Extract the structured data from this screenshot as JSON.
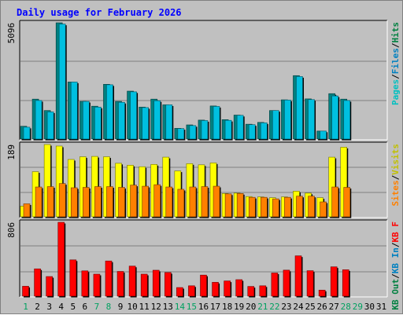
{
  "chart_data": [
    {
      "type": "bar",
      "title": "Daily usage for February 2026",
      "categories": [
        "1",
        "2",
        "3",
        "4",
        "5",
        "6",
        "7",
        "8",
        "9",
        "10",
        "11",
        "12",
        "13",
        "14",
        "15",
        "16",
        "17",
        "18",
        "19",
        "20",
        "21",
        "22",
        "23",
        "24",
        "25",
        "26",
        "27",
        "28",
        "29",
        "30",
        "31"
      ],
      "weekend_days": [
        "1",
        "7",
        "8",
        "14",
        "15",
        "21",
        "22",
        "28",
        "29"
      ],
      "ymax_label": "5096",
      "ymax": 5096,
      "side_labels": [
        {
          "text": "Hits",
          "color": "#008040"
        },
        {
          "text": "Files",
          "color": "#0080c0"
        },
        {
          "text": "Pages",
          "color": "#00c0c0"
        }
      ],
      "series": [
        {
          "name": "Hits",
          "color": "#008080",
          "values": [
            560,
            1750,
            1250,
            5096,
            2500,
            1650,
            1440,
            2400,
            1650,
            2100,
            1400,
            1750,
            1500,
            470,
            620,
            830,
            1450,
            850,
            1050,
            650,
            730,
            1250,
            1720,
            2780,
            1760,
            350,
            1990,
            1750,
            0,
            0,
            0
          ]
        },
        {
          "name": "Pages",
          "color": "#00c0e0",
          "values": [
            520,
            1690,
            1190,
            5040,
            2500,
            1650,
            1400,
            2380,
            1610,
            2070,
            1380,
            1680,
            1500,
            460,
            590,
            810,
            1430,
            820,
            1040,
            630,
            710,
            1250,
            1710,
            2740,
            1730,
            350,
            1890,
            1690,
            0,
            0,
            0
          ]
        }
      ]
    },
    {
      "type": "bar",
      "ymax_label": "189",
      "ymax": 189,
      "side_labels": [
        {
          "text": "Visits",
          "color": "#c0c000"
        },
        {
          "text": "Sites",
          "color": "#ff8000"
        }
      ],
      "series": [
        {
          "name": "Visits",
          "color": "#ffff00",
          "values": [
            28,
            118,
            189,
            185,
            150,
            157,
            158,
            157,
            140,
            135,
            131,
            137,
            156,
            120,
            139,
            136,
            141,
            61,
            62,
            53,
            52,
            50,
            52,
            67,
            62,
            50,
            156,
            182,
            0,
            0,
            0
          ]
        },
        {
          "name": "Sites",
          "color": "#ff8000",
          "values": [
            34,
            78,
            79,
            87,
            76,
            77,
            79,
            79,
            77,
            83,
            80,
            84,
            78,
            72,
            78,
            79,
            80,
            60,
            61,
            51,
            51,
            47,
            51,
            54,
            54,
            39,
            78,
            77,
            0,
            0,
            0
          ]
        }
      ]
    },
    {
      "type": "bar",
      "ymax_label": "806",
      "ymax": 806,
      "side_labels": [
        {
          "text": "KB F",
          "color": "#ff0000"
        },
        {
          "text": "KB In",
          "color": "#0080c0"
        },
        {
          "text": "KB Out",
          "color": "#008040"
        }
      ],
      "series": [
        {
          "name": "KB F",
          "color": "#ff0000",
          "values": [
            108,
            298,
            214,
            806,
            396,
            276,
            240,
            384,
            270,
            328,
            240,
            283,
            258,
            94,
            113,
            230,
            151,
            166,
            180,
            106,
            113,
            253,
            284,
            440,
            278,
            66,
            320,
            288,
            0,
            0,
            0
          ]
        }
      ]
    }
  ]
}
